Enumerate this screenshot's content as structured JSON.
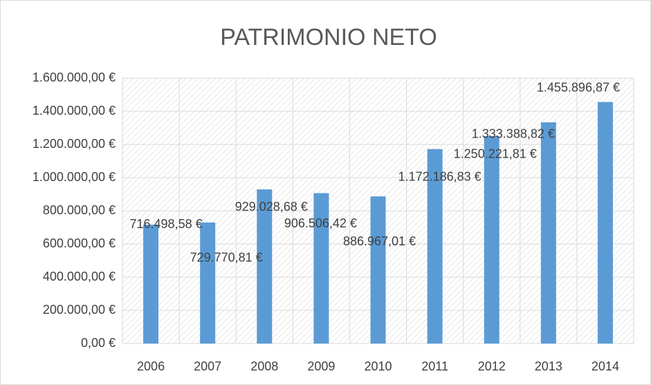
{
  "chart_data": {
    "type": "bar",
    "title": "PATRIMONIO NETO",
    "categories": [
      "2006",
      "2007",
      "2008",
      "2009",
      "2010",
      "2011",
      "2012",
      "2013",
      "2014"
    ],
    "values": [
      716498.58,
      729770.81,
      929028.68,
      906506.42,
      886967.01,
      1172186.83,
      1250221.81,
      1333388.82,
      1455896.87
    ],
    "value_labels": [
      "716.498,58 €",
      "729.770,81 €",
      "929.028,68 €",
      "906.506,42 €",
      "886.967,01 €",
      "1.172.186,83 €",
      "1.250.221,81 €",
      "1.333.388,82 €",
      "1.455.896,87 €"
    ],
    "color": "#5b9bd5",
    "ylim": [
      0,
      1600000
    ],
    "yticks": [
      {
        "value": 0,
        "label": "0,00 €"
      },
      {
        "value": 200000,
        "label": "200.000,00 €"
      },
      {
        "value": 400000,
        "label": "400.000,00 €"
      },
      {
        "value": 600000,
        "label": "600.000,00 €"
      },
      {
        "value": 800000,
        "label": "800.000,00 €"
      },
      {
        "value": 1000000,
        "label": "1.000.000,00 €"
      },
      {
        "value": 1200000,
        "label": "1.200.000,00 €"
      },
      {
        "value": 1400000,
        "label": "1.400.000,00 €"
      },
      {
        "value": 1600000,
        "label": "1.600.000,00 €"
      }
    ],
    "grid": true
  }
}
